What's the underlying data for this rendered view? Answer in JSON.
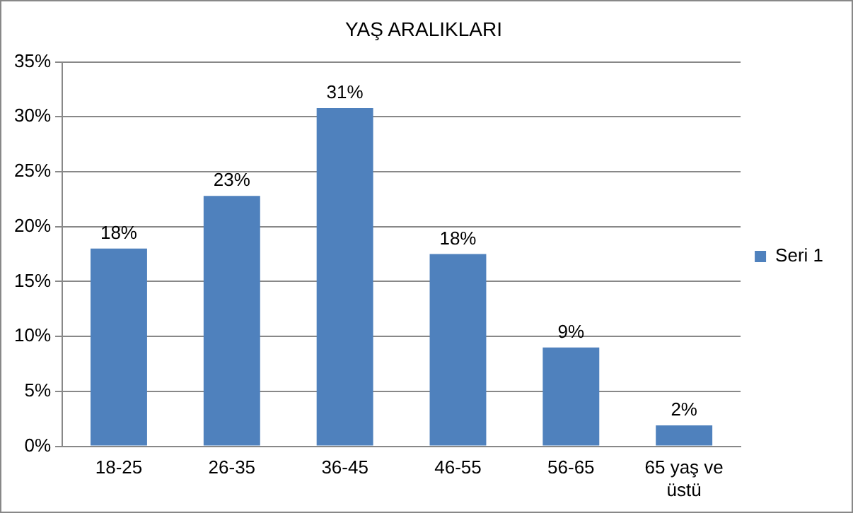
{
  "chart_data": {
    "type": "bar",
    "title": "YAŞ ARALIKLARI",
    "categories": [
      "18-25",
      "26-35",
      "36-45",
      "46-55",
      "56-65",
      "65 yaş ve üstü"
    ],
    "series": [
      {
        "name": "Seri 1",
        "color": "#4f81bd",
        "values": [
          18,
          22.8,
          30.8,
          17.5,
          9,
          1.9
        ],
        "value_labels": [
          "18%",
          "23%",
          "31%",
          "18%",
          "9%",
          "2%"
        ]
      }
    ],
    "ylim": [
      0,
      35
    ],
    "yticks": [
      {
        "value": 0,
        "label": "0%"
      },
      {
        "value": 5,
        "label": "5%"
      },
      {
        "value": 10,
        "label": "10%"
      },
      {
        "value": 15,
        "label": "15%"
      },
      {
        "value": 20,
        "label": "20%"
      },
      {
        "value": 25,
        "label": "25%"
      },
      {
        "value": 30,
        "label": "30%"
      },
      {
        "value": 35,
        "label": "35%"
      }
    ],
    "grid": "y",
    "legend": "right"
  }
}
